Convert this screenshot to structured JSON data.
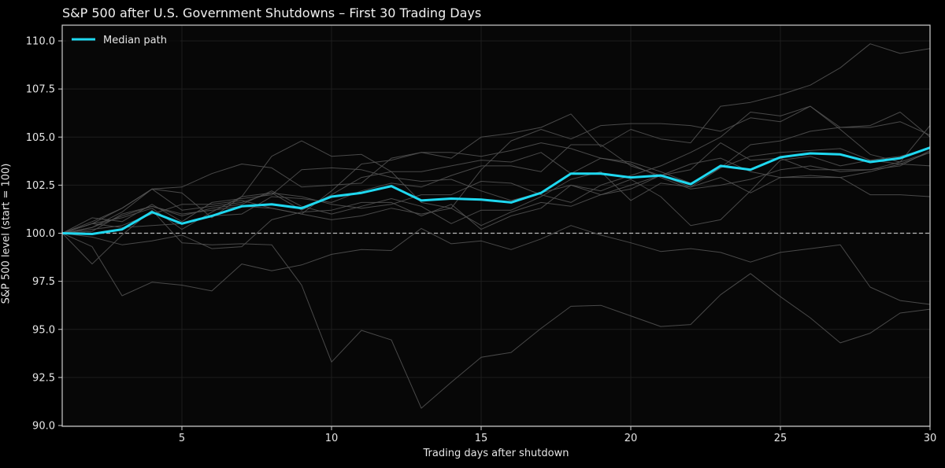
{
  "chart_data": {
    "type": "line",
    "title": "S&P 500 after U.S. Government Shutdowns – First 30 Trading Days",
    "xlabel": "Trading days after shutdown",
    "ylabel": "S&P 500 level (start = 100)",
    "xlim": [
      1,
      30
    ],
    "ylim": [
      90,
      110.8
    ],
    "xticks": [
      5,
      10,
      15,
      20,
      25,
      30
    ],
    "yticks": [
      90.0,
      92.5,
      95.0,
      97.5,
      100.0,
      102.5,
      105.0,
      107.5,
      110.0
    ],
    "ytick_labels": [
      "90.0",
      "92.5",
      "95.0",
      "97.5",
      "100.0",
      "102.5",
      "105.0",
      "107.5",
      "110.0"
    ],
    "grid": true,
    "reference_line": {
      "y": 100,
      "style": "dashed",
      "color": "#bbbbbb"
    },
    "legend": {
      "position": "upper left",
      "entries": [
        "Median path"
      ]
    },
    "x": [
      1,
      2,
      3,
      4,
      5,
      6,
      7,
      8,
      9,
      10,
      11,
      12,
      13,
      14,
      15,
      16,
      17,
      18,
      19,
      20,
      21,
      22,
      23,
      24,
      25,
      26,
      27,
      28,
      29,
      30
    ],
    "series": [
      {
        "name": "Median path",
        "color": "#1fd8f0",
        "width": 3,
        "values": [
          100.0,
          99.96,
          100.2,
          101.1,
          100.5,
          100.9,
          101.4,
          101.5,
          101.3,
          101.9,
          102.1,
          102.45,
          101.7,
          101.8,
          101.75,
          101.6,
          102.1,
          103.1,
          103.1,
          102.9,
          103.0,
          102.55,
          103.5,
          103.3,
          103.95,
          104.15,
          104.1,
          103.7,
          103.9,
          104.45
        ]
      },
      {
        "name": "path-1",
        "color": "#555555",
        "width": 1,
        "values": [
          100.0,
          99.3,
          96.75,
          97.45,
          97.3,
          97.0,
          98.4,
          98.05,
          98.35,
          98.9,
          99.15,
          99.1,
          100.25,
          99.45,
          99.6,
          99.15,
          99.7,
          100.4,
          99.9,
          99.5,
          99.05,
          99.2,
          99.0,
          98.5,
          99.0,
          99.2,
          99.4,
          97.2,
          96.5,
          96.3
        ]
      },
      {
        "name": "path-2",
        "color": "#555555",
        "width": 1,
        "values": [
          100.0,
          98.4,
          99.9,
          101.2,
          99.5,
          99.4,
          99.45,
          99.4,
          97.3,
          93.3,
          94.95,
          94.45,
          90.9,
          92.25,
          93.55,
          93.8,
          95.05,
          96.2,
          96.25,
          95.7,
          95.15,
          95.25,
          96.8,
          97.9,
          96.7,
          95.6,
          94.3,
          94.8,
          95.85,
          96.05
        ]
      },
      {
        "name": "path-3",
        "color": "#555555",
        "width": 1,
        "values": [
          100.0,
          100.6,
          101.3,
          102.3,
          102.4,
          103.1,
          103.6,
          103.4,
          102.4,
          102.5,
          102.6,
          103.9,
          104.2,
          103.9,
          105.0,
          105.2,
          105.5,
          106.2,
          104.5,
          105.4,
          104.9,
          104.7,
          106.6,
          106.8,
          107.2,
          107.7,
          108.6,
          109.85,
          109.35,
          109.6
        ]
      },
      {
        "name": "path-4",
        "color": "#555555",
        "width": 1,
        "values": [
          100.0,
          100.5,
          101.3,
          102.3,
          102.1,
          100.8,
          101.9,
          104.0,
          104.8,
          104.0,
          104.1,
          103.2,
          101.6,
          101.3,
          103.3,
          104.8,
          105.4,
          104.9,
          105.6,
          105.7,
          105.7,
          105.6,
          105.3,
          106.0,
          105.8,
          106.6,
          105.5,
          105.6,
          106.3,
          105.0
        ]
      },
      {
        "name": "path-5",
        "color": "#555555",
        "width": 1,
        "values": [
          100.0,
          100.8,
          100.6,
          101.5,
          100.6,
          101.6,
          101.8,
          102.0,
          103.3,
          103.4,
          103.3,
          102.9,
          102.7,
          102.8,
          102.2,
          101.7,
          102.1,
          102.5,
          102.0,
          102.3,
          103.0,
          103.6,
          103.9,
          103.2,
          102.9,
          103.0,
          102.9,
          102.0,
          102.0,
          101.9
        ]
      },
      {
        "name": "path-6",
        "color": "#555555",
        "width": 1,
        "values": [
          100.0,
          100.3,
          100.9,
          101.4,
          100.9,
          101.3,
          101.5,
          102.2,
          101.4,
          101.0,
          101.4,
          101.8,
          101.4,
          100.5,
          101.2,
          101.2,
          101.9,
          102.8,
          103.2,
          101.7,
          102.6,
          102.4,
          102.9,
          102.1,
          102.9,
          102.9,
          102.9,
          103.2,
          103.6,
          103.5
        ]
      },
      {
        "name": "path-7",
        "color": "#555555",
        "width": 1,
        "values": [
          100.0,
          100.2,
          100.4,
          101.0,
          101.5,
          101.5,
          101.7,
          101.3,
          101.0,
          100.7,
          100.9,
          101.3,
          101.0,
          101.3,
          100.4,
          101.1,
          101.6,
          101.4,
          102.0,
          102.5,
          103.0,
          103.3,
          104.7,
          103.8,
          103.9,
          103.3,
          103.3,
          103.3,
          103.7,
          104.2
        ]
      },
      {
        "name": "path-8",
        "color": "#555555",
        "width": 1,
        "values": [
          100.0,
          99.8,
          99.4,
          99.6,
          99.9,
          99.2,
          99.3,
          100.7,
          101.1,
          101.2,
          101.6,
          101.6,
          100.9,
          101.5,
          100.2,
          100.9,
          101.3,
          102.5,
          102.2,
          102.8,
          101.9,
          100.4,
          100.7,
          102.2,
          103.8,
          104.0,
          103.5,
          103.8,
          104.0,
          104.4
        ]
      },
      {
        "name": "path-9",
        "color": "#555555",
        "width": 1,
        "values": [
          100.0,
          100.1,
          101.0,
          101.4,
          101.0,
          101.2,
          101.4,
          101.3,
          101.0,
          102.2,
          103.6,
          103.8,
          104.2,
          104.2,
          104.0,
          104.3,
          104.7,
          104.4,
          103.9,
          103.6,
          102.9,
          102.3,
          102.5,
          102.8,
          103.3,
          103.5,
          103.2,
          103.3,
          103.5,
          104.3
        ]
      },
      {
        "name": "path-10",
        "color": "#555555",
        "width": 1,
        "values": [
          100.0,
          100.5,
          100.8,
          101.3,
          100.2,
          101.1,
          101.9,
          102.1,
          101.2,
          102.0,
          102.9,
          103.2,
          103.2,
          103.5,
          103.8,
          103.7,
          104.2,
          103.1,
          103.9,
          103.7,
          103.2,
          102.6,
          103.4,
          104.0,
          104.2,
          104.3,
          104.4,
          103.8,
          103.6,
          104.2
        ]
      },
      {
        "name": "path-11",
        "color": "#555555",
        "width": 1,
        "values": [
          100.0,
          100.5,
          100.3,
          100.4,
          100.5,
          100.9,
          101.0,
          101.9,
          101.8,
          101.6,
          102.2,
          102.6,
          102.4,
          103.0,
          103.5,
          103.5,
          103.2,
          104.6,
          104.6,
          103.5,
          103.0,
          102.4,
          103.4,
          104.6,
          104.8,
          105.3,
          105.5,
          105.5,
          105.8,
          105.1
        ]
      },
      {
        "name": "path-12",
        "color": "#555555",
        "width": 1,
        "values": [
          100.0,
          100.3,
          101.1,
          102.3,
          101.2,
          101.4,
          101.6,
          102.1,
          101.9,
          101.5,
          101.3,
          101.5,
          102.0,
          102.0,
          102.7,
          102.6,
          102.0,
          101.6,
          102.5,
          103.0,
          103.5,
          104.2,
          105.0,
          106.3,
          106.1,
          106.6,
          105.4,
          104.1,
          103.7,
          105.6
        ]
      }
    ]
  },
  "chart_title": "S&P 500 after U.S. Government Shutdowns – First 30 Trading Days",
  "axes": {
    "xlabel": "Trading days after shutdown",
    "ylabel": "S&P 500 level (start = 100)"
  },
  "legend": {
    "median_label": "Median path"
  }
}
